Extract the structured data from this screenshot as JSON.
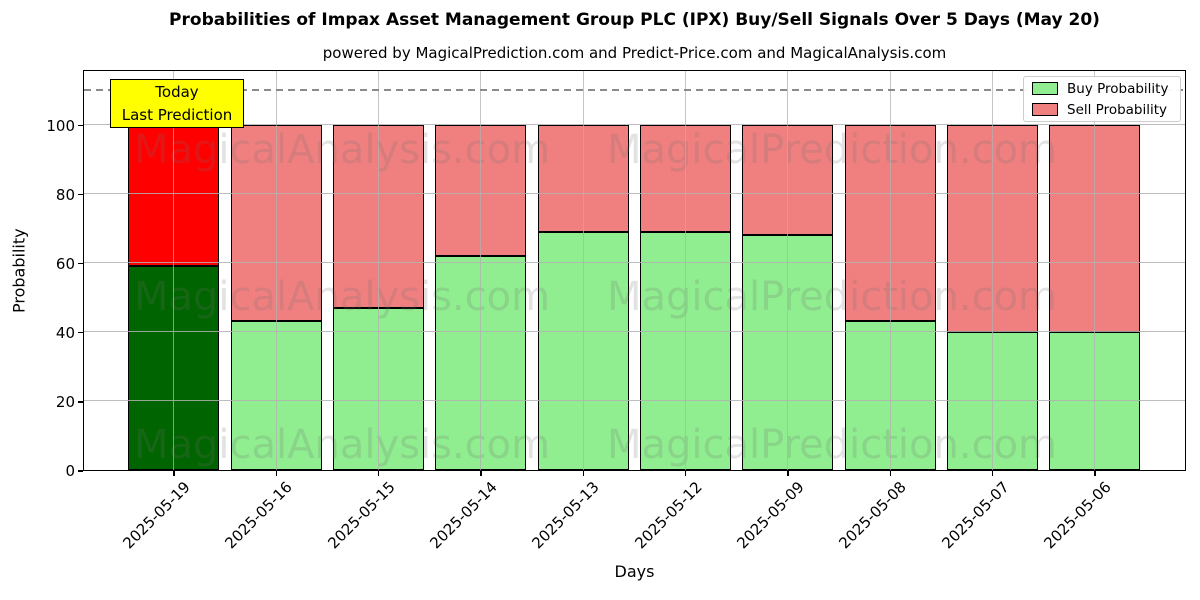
{
  "title": "Probabilities of Impax Asset Management Group PLC (IPX) Buy/Sell Signals Over 5 Days (May 20)",
  "subtitle": "powered by MagicalPrediction.com and Predict-Price.com and MagicalAnalysis.com",
  "annotation": {
    "line1": "Today",
    "line2": "Last Prediction",
    "bg": "#ffff00"
  },
  "legend": [
    {
      "label": "Buy Probability",
      "color": "#90EE90"
    },
    {
      "label": "Sell Probability",
      "color": "#F08080"
    }
  ],
  "watermarks": {
    "left": "MagicalAnalysis.com",
    "right": "MagicalPrediction.com"
  },
  "chart_data": {
    "type": "bar",
    "stacked": true,
    "title": "Probabilities of Impax Asset Management Group PLC (IPX) Buy/Sell Signals Over 5 Days (May 20)",
    "subtitle": "powered by MagicalPrediction.com and Predict-Price.com and MagicalAnalysis.com",
    "xlabel": "Days",
    "ylabel": "Probability",
    "yticks": [
      0,
      20,
      40,
      60,
      80,
      100
    ],
    "ylim": [
      0,
      116
    ],
    "grid": true,
    "legend_position": "upper right",
    "dashed_line_y": 110,
    "categories": [
      "2025-05-19",
      "2025-05-16",
      "2025-05-15",
      "2025-05-14",
      "2025-05-13",
      "2025-05-12",
      "2025-05-09",
      "2025-05-08",
      "2025-05-07",
      "2025-05-06"
    ],
    "series": [
      {
        "name": "Buy Probability",
        "color": "#90EE90",
        "highlight_color": "#006400",
        "values": [
          59,
          43,
          47,
          62,
          69,
          69,
          68,
          43,
          40,
          40
        ]
      },
      {
        "name": "Sell Probability",
        "color": "#F08080",
        "highlight_color": "#FF0000",
        "values": [
          41,
          57,
          53,
          38,
          31,
          31,
          32,
          57,
          60,
          60
        ]
      }
    ],
    "highlighted_category": "2025-05-19",
    "colors": {
      "grid": "#b2b2b2",
      "bar_edge": "#000000",
      "dashed_line": "#8a8a8a"
    }
  }
}
